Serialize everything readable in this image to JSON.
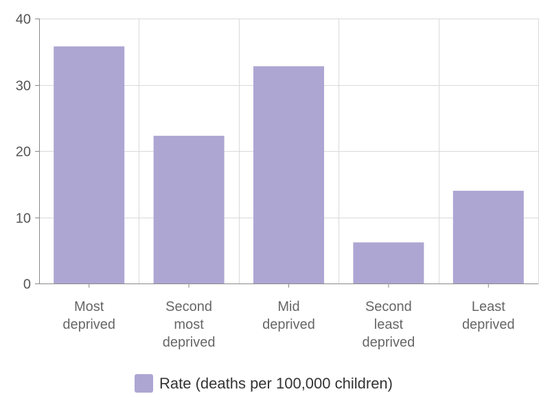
{
  "chart_data": {
    "type": "bar",
    "categories": [
      [
        "Most",
        "deprived"
      ],
      [
        "Second",
        "most",
        "deprived"
      ],
      [
        "Mid",
        "deprived"
      ],
      [
        "Second",
        "least",
        "deprived"
      ],
      [
        "Least",
        "deprived"
      ]
    ],
    "series": [
      {
        "name": "Rate (deaths per 100,000 children)",
        "values": [
          35.8,
          22.3,
          32.8,
          6.2,
          14.0
        ],
        "color": "#ada6d3"
      }
    ],
    "ylim": [
      0,
      40
    ],
    "yticks": [
      0,
      10,
      20,
      30,
      40
    ],
    "grid": true,
    "legend_position": "bottom"
  }
}
